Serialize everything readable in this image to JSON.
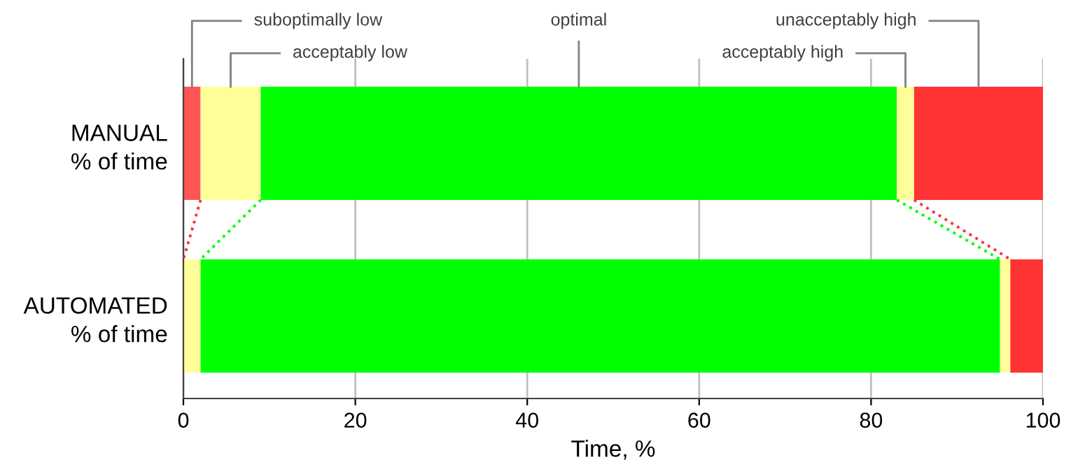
{
  "chart_data": {
    "type": "bar",
    "orientation": "horizontal",
    "stacked": true,
    "categories": [
      "MANUAL\n% of time",
      "AUTOMATED\n% of time"
    ],
    "series": [
      {
        "name": "suboptimally low",
        "colors": [
          "#ff5555",
          "#ff3333"
        ],
        "values": [
          2,
          0
        ]
      },
      {
        "name": "acceptably low",
        "color": "#ffff99",
        "values": [
          7,
          2
        ]
      },
      {
        "name": "optimal",
        "color": "#00ff00",
        "values": [
          74,
          93
        ]
      },
      {
        "name": "acceptably high",
        "color": "#ffff99",
        "values": [
          2,
          1.2
        ]
      },
      {
        "name": "unacceptably high",
        "color": "#ff3333",
        "values": [
          15,
          3.8
        ]
      }
    ],
    "xlabel": "Time, %",
    "xlim": [
      0,
      100
    ],
    "xticks": [
      0,
      20,
      40,
      60,
      80,
      100
    ],
    "grid": "x",
    "legend": false
  }
}
